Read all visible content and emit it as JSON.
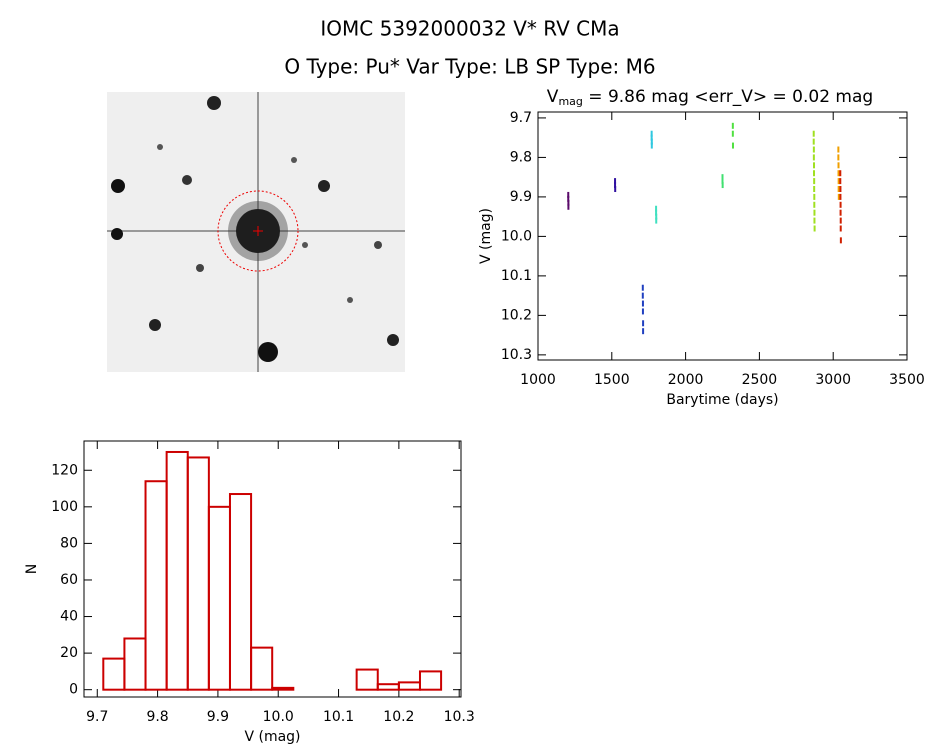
{
  "title": "IOMC 5392000032    V* RV CMa",
  "subtitle": "O Type: Pu*  Var Type: LB  SP Type: M6",
  "chart_data": [
    {
      "type": "scatter",
      "title": "V",
      "title_subscript": "mag",
      "title_suffix": " = 9.86 mag <err_V> = 0.02 mag",
      "x_label": "Barytime (days)",
      "y_label": "V (mag)",
      "xlim": [
        1000,
        3500
      ],
      "xticks": [
        1000,
        1500,
        2000,
        2500,
        3000,
        3500
      ],
      "ylim": [
        10.313,
        9.685
      ],
      "yticks": [
        9.7,
        9.8,
        9.9,
        {
          "value": 10,
          "label": "10.0"
        },
        10.1,
        10.2,
        10.3
      ],
      "series": [
        {
          "color": "#5a0a6a",
          "x": [
            1205,
            1205,
            1206,
            1206
          ],
          "values": [
            9.895,
            9.905,
            9.915,
            9.925
          ]
        },
        {
          "color": "#3010a0",
          "x": [
            1522,
            1522,
            1523
          ],
          "values": [
            9.86,
            9.87,
            9.88
          ]
        },
        {
          "color": "#2040c0",
          "x": [
            1710,
            1710,
            1711,
            1711,
            1712,
            1712
          ],
          "values": [
            10.13,
            10.15,
            10.17,
            10.19,
            10.22,
            10.24
          ]
        },
        {
          "color": "#30c8e0",
          "x": [
            1770,
            1770,
            1771,
            1771
          ],
          "values": [
            9.74,
            9.75,
            9.76,
            9.77
          ]
        },
        {
          "color": "#40e0c0",
          "x": [
            1800,
            1800,
            1801,
            1801
          ],
          "values": [
            9.93,
            9.94,
            9.95,
            9.96
          ]
        },
        {
          "color": "#40e070",
          "x": [
            2250,
            2250,
            2251
          ],
          "values": [
            9.85,
            9.86,
            9.87
          ]
        },
        {
          "color": "#50e040",
          "x": [
            2320,
            2320,
            2321
          ],
          "values": [
            9.72,
            9.74,
            9.77
          ]
        },
        {
          "color": "#a0e020",
          "x": [
            2868,
            2868,
            2869,
            2869,
            2870,
            2870,
            2871,
            2871,
            2872,
            2872,
            2873,
            2873,
            2874
          ],
          "values": [
            9.74,
            9.76,
            9.78,
            9.8,
            9.82,
            9.84,
            9.86,
            9.88,
            9.9,
            9.92,
            9.94,
            9.96,
            9.98
          ]
        },
        {
          "color": "#f0a000",
          "x": [
            3035,
            3035,
            3036,
            3036,
            3037,
            3037,
            3038
          ],
          "values": [
            9.78,
            9.8,
            9.82,
            9.84,
            9.86,
            9.88,
            9.9
          ]
        },
        {
          "color": "#d02000",
          "x": [
            3048,
            3048,
            3049,
            3049,
            3050,
            3050,
            3051,
            3051,
            3052
          ],
          "values": [
            9.84,
            9.86,
            9.88,
            9.9,
            9.92,
            9.94,
            9.96,
            9.98,
            10.01
          ]
        }
      ]
    },
    {
      "type": "histogram",
      "x_label": "V (mag)",
      "y_label": "N",
      "color": "#cc0000",
      "xlim": [
        9.678,
        10.303
      ],
      "xticks": [
        9.7,
        9.8,
        9.9,
        {
          "value": 10,
          "label": "10.0"
        },
        10.1,
        10.2,
        10.3
      ],
      "ylim": [
        -4,
        136
      ],
      "yticks": [
        0,
        20,
        40,
        60,
        80,
        100,
        120
      ],
      "bins": [
        9.71,
        9.745,
        9.78,
        9.815,
        9.85,
        9.885,
        9.92,
        9.955,
        9.99,
        10.025,
        10.06,
        10.095,
        10.13,
        10.165,
        10.2,
        10.235,
        10.27
      ],
      "counts": [
        17,
        28,
        114,
        130,
        127,
        100,
        107,
        23,
        1,
        0,
        0,
        0,
        11,
        3,
        4,
        10
      ]
    }
  ]
}
